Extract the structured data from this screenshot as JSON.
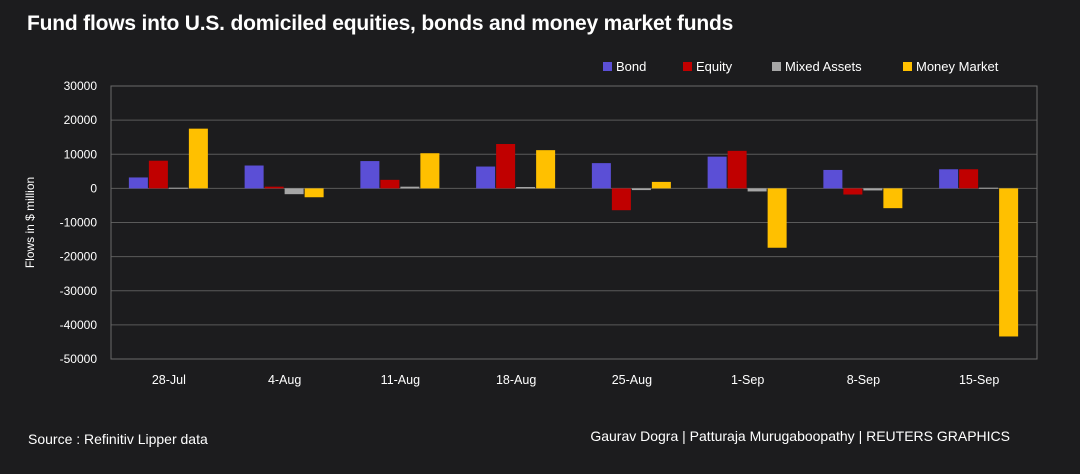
{
  "title": "Fund flows into U.S. domiciled equities, bonds and money market funds",
  "source": "Source : Refinitiv Lipper data",
  "credit": "Gaurav Dogra | Patturaja Murugaboopathy | REUTERS GRAPHICS",
  "chart_data": {
    "type": "bar",
    "title": "Fund flows into U.S. domiciled equities, bonds and money market funds",
    "xlabel": "",
    "ylabel": "Flows in $ million",
    "ylim": [
      -50000,
      30000
    ],
    "yticks": [
      30000,
      20000,
      10000,
      0,
      -10000,
      -20000,
      -30000,
      -40000,
      -50000
    ],
    "grid": true,
    "legend_position": "top-right",
    "categories": [
      "28-Jul",
      "4-Aug",
      "11-Aug",
      "18-Aug",
      "25-Aug",
      "1-Sep",
      "8-Sep",
      "15-Sep"
    ],
    "series": [
      {
        "name": "Bond",
        "color": "#5b4fd6",
        "values": [
          3200,
          6700,
          8000,
          6400,
          7400,
          9300,
          5400,
          5600
        ]
      },
      {
        "name": "Equity",
        "color": "#c00000",
        "values": [
          8100,
          500,
          2500,
          13000,
          -6400,
          11000,
          -1800,
          5600
        ]
      },
      {
        "name": "Mixed Assets",
        "color": "#a6a6a6",
        "values": [
          200,
          -1700,
          500,
          400,
          -500,
          -900,
          -600,
          200
        ]
      },
      {
        "name": "Money Market",
        "color": "#ffc000",
        "values": [
          17500,
          -2600,
          10300,
          11200,
          1900,
          -17400,
          -5800,
          -43400
        ]
      }
    ]
  }
}
